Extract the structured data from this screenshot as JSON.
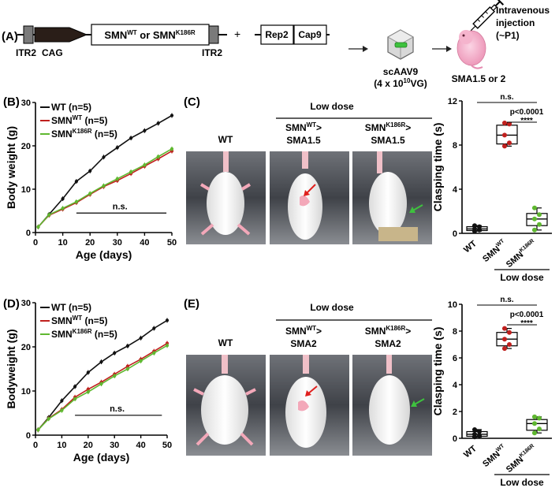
{
  "panel_a": {
    "label": "(A)",
    "itr_left": "ITR2",
    "promoter": "CAG",
    "construct": "SMN",
    "construct_sup1": "WT",
    "construct_or": " or SMN",
    "construct_sup2": "K186R",
    "itr_right": "ITR2",
    "plus": "+",
    "rep": "Rep2",
    "cap": "Cap9",
    "vector_line1": "scAAV9",
    "vector_line2": "(4 x 10",
    "vector_sup": "10",
    "vector_line2_end": "VG)",
    "injection_line1": "Intravenous",
    "injection_line2": "injection",
    "injection_line3": "(~P1)",
    "mouse_label": "SMA1.5 or 2"
  },
  "panel_b": {
    "label": "(B)"
  },
  "panel_c": {
    "label": "(C)",
    "dose": "Low dose",
    "wt": "WT",
    "col2_line1": "SMN",
    "col2_sup": "WT",
    "col2_line1_end": ">",
    "col2_line2": "SMA1.5",
    "col3_line1": "SMN",
    "col3_sup": "K186R",
    "col3_line1_end": ">",
    "col3_line2": "SMA1.5"
  },
  "panel_d": {
    "label": "(D)"
  },
  "panel_e": {
    "label": "(E)",
    "dose": "Low dose",
    "wt": "WT",
    "col2_line1": "SMN",
    "col2_sup": "WT",
    "col2_line1_end": ">",
    "col2_line2": "SMA2",
    "col3_line1": "SMN",
    "col3_sup": "K186R",
    "col3_line1_end": ">",
    "col3_line2": "SMA2"
  },
  "colors": {
    "wt": "#111111",
    "smn_wt": "#c0201e",
    "smn_k186r": "#5fb830",
    "arrow_red": "#e0201e",
    "arrow_green": "#3ec23e",
    "mouse_pink": "#f2a9c6"
  },
  "chart_data": [
    {
      "type": "line",
      "panel": "B",
      "xlabel": "Age (days)",
      "ylabel": "Body weight (g)",
      "xlim": [
        0,
        50
      ],
      "ylim": [
        0,
        30
      ],
      "xticks": [
        "0",
        "10",
        "20",
        "30",
        "40",
        "50"
      ],
      "yticks": [
        "0",
        "10",
        "20",
        "30"
      ],
      "x": [
        1,
        5,
        10,
        15,
        20,
        25,
        30,
        35,
        40,
        45,
        50
      ],
      "series": [
        {
          "name": "WT (n=5)",
          "name_main": "WT",
          "name_sup": "",
          "name_n": " (n=5)",
          "color": "#111111",
          "values": [
            1.3,
            4.2,
            7.8,
            11.8,
            14.2,
            17.4,
            19.6,
            21.8,
            23.5,
            25.2,
            27.0
          ]
        },
        {
          "name": "SMNWT (n=5)",
          "name_main": "SMN",
          "name_sup": "WT",
          "name_n": " (n=5)",
          "color": "#c0201e",
          "values": [
            1.3,
            4.0,
            5.4,
            6.9,
            8.8,
            10.6,
            12.0,
            13.6,
            15.3,
            17.0,
            18.8
          ]
        },
        {
          "name": "SMNK186R (n=5)",
          "name_main": "SMN",
          "name_sup": "K186R",
          "name_n": " (n=5)",
          "color": "#5fb830",
          "values": [
            1.3,
            4.1,
            5.6,
            7.1,
            9.0,
            10.8,
            12.4,
            14.0,
            15.6,
            17.5,
            19.3
          ]
        }
      ],
      "annotation": "n.s."
    },
    {
      "type": "bar",
      "panel": "C",
      "ylabel": "Clasping time (s)",
      "ylim": [
        0,
        12
      ],
      "yticks": [
        "0",
        "4",
        "8",
        "12"
      ],
      "categories": [
        "WT",
        "SMNWT",
        "SMNK186R"
      ],
      "category_main": [
        "WT",
        "SMN",
        "SMN"
      ],
      "category_sup": [
        "",
        "WT",
        "K186R"
      ],
      "group_label": "Low dose",
      "boxes": [
        {
          "min": 0.2,
          "q1": 0.25,
          "median": 0.4,
          "q3": 0.6,
          "max": 0.7,
          "color": "#111111",
          "points": [
            0.2,
            0.3,
            0.4,
            0.6,
            0.7
          ]
        },
        {
          "min": 7.9,
          "q1": 8.1,
          "median": 8.9,
          "q3": 9.8,
          "max": 10.0,
          "color": "#c0201e",
          "points": [
            7.9,
            8.2,
            8.9,
            9.9,
            10.0
          ]
        },
        {
          "min": 0.3,
          "q1": 0.7,
          "median": 1.3,
          "q3": 1.8,
          "max": 2.3,
          "color": "#5fb830",
          "points": [
            0.3,
            0.8,
            1.3,
            1.7,
            2.3
          ]
        }
      ],
      "annotations": [
        "n.s.",
        "p<0.0001",
        "****"
      ]
    },
    {
      "type": "line",
      "panel": "D",
      "xlabel": "Age (days)",
      "ylabel": "Bodyweight (g)",
      "xlim": [
        0,
        50
      ],
      "ylim": [
        0,
        30
      ],
      "xticks": [
        "0",
        "10",
        "20",
        "30",
        "40",
        "50"
      ],
      "yticks": [
        "0",
        "10",
        "20",
        "30"
      ],
      "x": [
        1,
        5,
        10,
        15,
        20,
        25,
        30,
        35,
        40,
        45,
        50
      ],
      "series": [
        {
          "name": "WT (n=5)",
          "name_main": "WT",
          "name_sup": "",
          "name_n": " (n=5)",
          "color": "#111111",
          "values": [
            1.2,
            4.0,
            7.8,
            11.0,
            14.2,
            16.6,
            18.6,
            20.2,
            22.0,
            24.2,
            26.0
          ]
        },
        {
          "name": "SMNWT (n=5)",
          "name_main": "SMN",
          "name_sup": "WT",
          "name_n": " (n=5)",
          "color": "#c0201e",
          "values": [
            1.2,
            3.8,
            5.8,
            8.6,
            10.4,
            12.0,
            13.8,
            15.6,
            17.2,
            19.0,
            20.8
          ]
        },
        {
          "name": "SMNK186R (n=5)",
          "name_main": "SMN",
          "name_sup": "K186R",
          "name_n": " (n=5)",
          "color": "#5fb830",
          "values": [
            1.2,
            3.7,
            5.6,
            8.2,
            9.8,
            11.6,
            13.4,
            15.0,
            16.8,
            18.6,
            20.3
          ]
        }
      ],
      "annotation": "n.s."
    },
    {
      "type": "bar",
      "panel": "E",
      "ylabel": "Clasping time (s)",
      "ylim": [
        0,
        10
      ],
      "yticks": [
        "0",
        "2",
        "4",
        "6",
        "8",
        "10"
      ],
      "categories": [
        "WT",
        "SMNWT",
        "SMNK186R"
      ],
      "category_main": [
        "WT",
        "SMN",
        "SMN"
      ],
      "category_sup": [
        "",
        "WT",
        "K186R"
      ],
      "group_label": "Low dose",
      "boxes": [
        {
          "min": 0.1,
          "q1": 0.15,
          "median": 0.3,
          "q3": 0.5,
          "max": 0.65,
          "color": "#111111",
          "points": [
            0.1,
            0.2,
            0.3,
            0.5,
            0.65
          ]
        },
        {
          "min": 6.7,
          "q1": 6.9,
          "median": 7.4,
          "q3": 7.9,
          "max": 8.2,
          "color": "#c0201e",
          "points": [
            6.7,
            7.0,
            7.4,
            7.9,
            8.2
          ]
        },
        {
          "min": 0.4,
          "q1": 0.6,
          "median": 1.1,
          "q3": 1.4,
          "max": 1.6,
          "color": "#5fb830",
          "points": [
            0.4,
            0.7,
            1.1,
            1.5,
            1.6
          ]
        }
      ],
      "annotations": [
        "n.s.",
        "p<0.0001",
        "****"
      ]
    }
  ]
}
